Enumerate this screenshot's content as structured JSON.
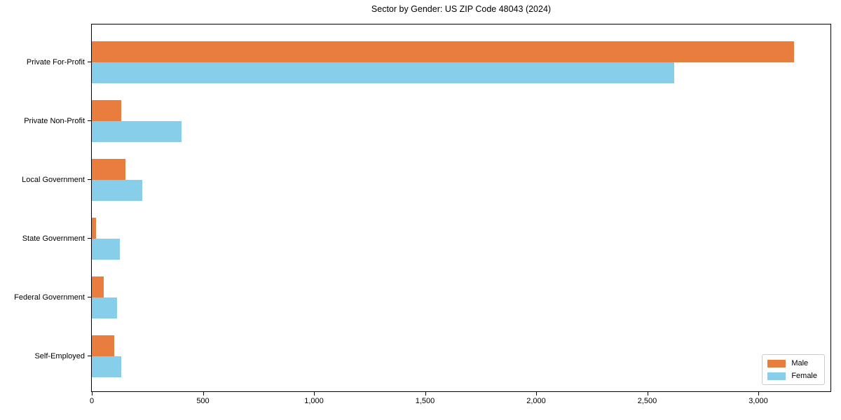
{
  "chart_data": {
    "type": "bar",
    "orientation": "horizontal",
    "title": "Sector by Gender: US ZIP Code 48043 (2024)",
    "categories": [
      "Private For-Profit",
      "Private Non-Profit",
      "Local Government",
      "State Government",
      "Federal Government",
      "Self-Employed"
    ],
    "series": [
      {
        "name": "Male",
        "color": "#E87D3E",
        "values": [
          3160,
          132,
          151,
          19,
          54,
          100
        ]
      },
      {
        "name": "Female",
        "color": "#87CEEB",
        "values": [
          2620,
          403,
          227,
          126,
          113,
          132
        ]
      }
    ],
    "xlabel": "",
    "ylabel": "",
    "xlim": [
      0,
      3325
    ],
    "x_ticks": [
      0,
      500,
      1000,
      1500,
      2000,
      2500,
      3000
    ],
    "x_tick_labels": [
      "0",
      "500",
      "1,000",
      "1,500",
      "2,000",
      "2,500",
      "3,000"
    ],
    "grid": false,
    "legend_position": "lower right",
    "background_color": "#ffffff",
    "spine_color": "#000000"
  }
}
